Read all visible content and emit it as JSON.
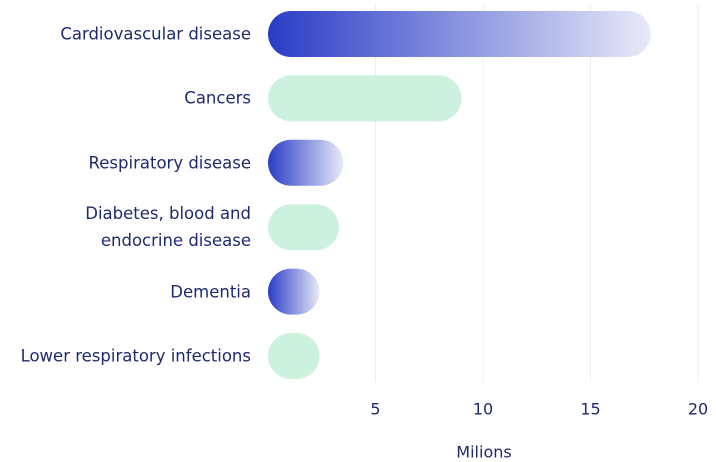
{
  "chart_data": {
    "type": "hbar",
    "categories": [
      "Cardiovascular disease",
      "Cancers",
      "Respiratory disease",
      "Diabetes, blood and endocrine disease",
      "Dementia",
      "Lower respiratory infections"
    ],
    "values": [
      17.8,
      9.0,
      3.5,
      3.3,
      2.4,
      2.4
    ],
    "colors": [
      [
        "#2a3cc6",
        "#e8eaf8"
      ],
      [
        "#cdf1df",
        "#cdf1df"
      ],
      [
        "#2a3cc6",
        "#e8eaf8"
      ],
      [
        "#cdf1df",
        "#cdf1df"
      ],
      [
        "#2a3cc6",
        "#e8eaf8"
      ],
      [
        "#cdf1df",
        "#cdf1df"
      ]
    ],
    "xlim": [
      0,
      20
    ],
    "xticks": [
      5,
      10,
      15,
      20
    ],
    "grid": true,
    "xlabel": "Milions"
  }
}
